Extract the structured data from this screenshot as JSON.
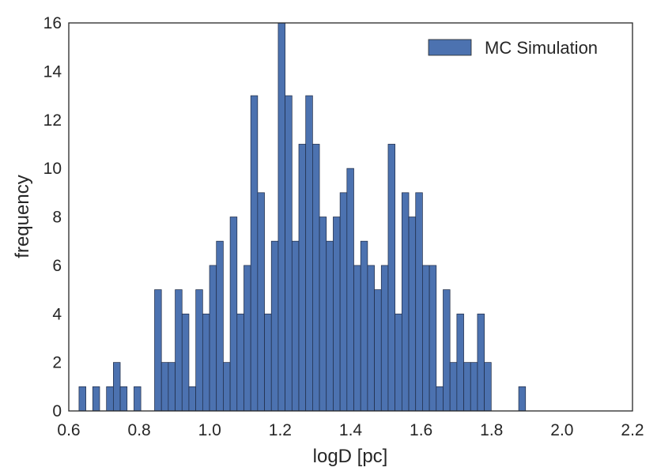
{
  "chart_data": {
    "type": "bar",
    "title": "",
    "xlabel": "logD [pc]",
    "ylabel": "frequency",
    "xlim": [
      0.6,
      2.2
    ],
    "ylim": [
      0,
      16
    ],
    "xticks": [
      0.6,
      0.8,
      1.0,
      1.2,
      1.4,
      1.6,
      1.8,
      2.0,
      2.2
    ],
    "xtick_labels": [
      "0.6",
      "0.8",
      "1.0",
      "1.2",
      "1.4",
      "1.6",
      "1.8",
      "2.0",
      "2.2"
    ],
    "yticks": [
      0,
      2,
      4,
      6,
      8,
      10,
      12,
      14,
      16
    ],
    "ytick_labels": [
      "0",
      "2",
      "4",
      "6",
      "8",
      "10",
      "12",
      "14",
      "16"
    ],
    "grid": false,
    "legend_position": "top-right",
    "bar_color": "#4C72B0",
    "bin_start": 0.629,
    "bin_width": 0.0195,
    "series": [
      {
        "name": "MC Simulation",
        "values": [
          1,
          0,
          1,
          0,
          1,
          2,
          1,
          0,
          1,
          0,
          0,
          5,
          2,
          2,
          5,
          4,
          1,
          5,
          4,
          6,
          7,
          2,
          8,
          4,
          6,
          13,
          9,
          4,
          7,
          16,
          13,
          7,
          11,
          13,
          11,
          8,
          7,
          8,
          9,
          10,
          6,
          7,
          6,
          5,
          6,
          11,
          4,
          9,
          8,
          9,
          6,
          6,
          1,
          5,
          2,
          4,
          2,
          2,
          4,
          2,
          0,
          0,
          0,
          0,
          1
        ]
      }
    ]
  }
}
